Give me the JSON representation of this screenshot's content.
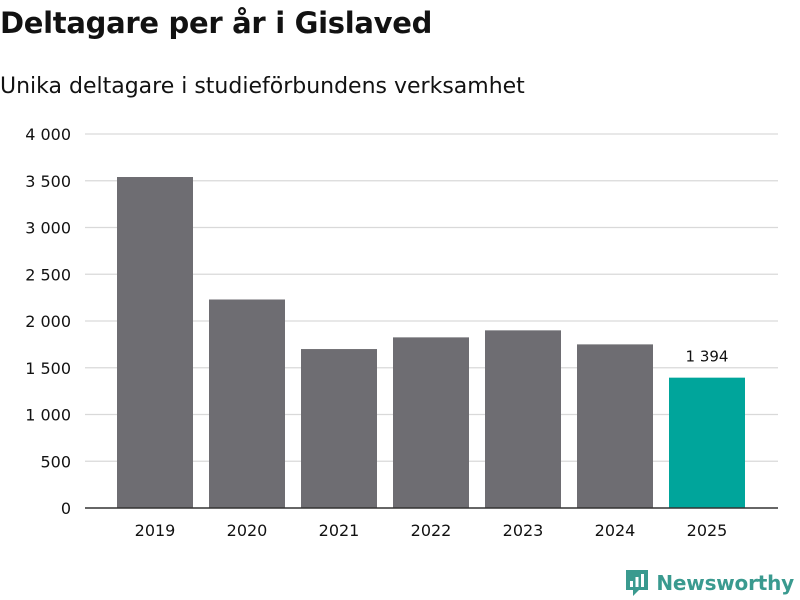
{
  "chart_data": {
    "type": "bar",
    "title": "Deltagare per år i Gislaved",
    "subtitle": "Unika deltagare i studieförbundens verksamhet",
    "categories": [
      "2019",
      "2020",
      "2021",
      "2022",
      "2023",
      "2024",
      "2025"
    ],
    "values": [
      3540,
      2230,
      1700,
      1825,
      1900,
      1750,
      1394
    ],
    "highlight_index": 6,
    "data_label": "1 394",
    "ylim": [
      0,
      4000
    ],
    "yticks": [
      0,
      500,
      1000,
      1500,
      2000,
      2500,
      3000,
      3500,
      4000
    ],
    "ytick_labels": [
      "0",
      "500",
      "1 000",
      "1 500",
      "2 000",
      "2 500",
      "3 000",
      "3 500",
      "4 000"
    ],
    "xlabel": "",
    "ylabel": "",
    "grid": true,
    "colors": {
      "bar": "#6e6d72",
      "highlight": "#00a59b",
      "grid": "#d9d9d9",
      "axis": "#333333",
      "text": "#121212"
    }
  },
  "brand": {
    "name": "Newsworthy",
    "color": "#3a9a8f"
  }
}
